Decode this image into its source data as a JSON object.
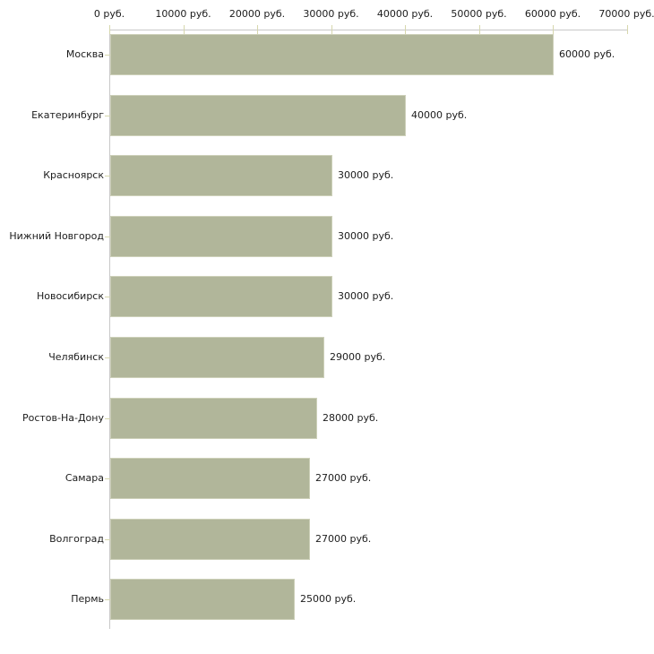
{
  "chart_data": {
    "type": "bar",
    "orientation": "horizontal",
    "title": "",
    "categories": [
      "Москва",
      "Екатеринбург",
      "Красноярск",
      "Нижний Новгород",
      "Новосибирск",
      "Челябинск",
      "Ростов-На-Дону",
      "Самара",
      "Волгоград",
      "Пермь"
    ],
    "values": [
      60000,
      40000,
      30000,
      30000,
      30000,
      29000,
      28000,
      27000,
      27000,
      25000
    ],
    "value_labels": [
      "60000 руб.",
      "40000 руб.",
      "30000 руб.",
      "30000 руб.",
      "30000 руб.",
      "29000 руб.",
      "28000 руб.",
      "27000 руб.",
      "27000 руб.",
      "25000 руб."
    ],
    "x_tick_values": [
      0,
      10000,
      20000,
      30000,
      40000,
      50000,
      60000,
      70000
    ],
    "x_tick_labels": [
      "0 руб.",
      "10000 руб.",
      "20000 руб.",
      "30000 руб.",
      "40000 руб.",
      "50000 руб.",
      "60000 руб.",
      "70000 руб."
    ],
    "xlim": [
      0,
      70000
    ],
    "xlabel": "",
    "ylabel": "",
    "axis_position": "top",
    "grid": false,
    "legend_position": "none",
    "colors": {
      "bar_fill": "#b1b69a",
      "bar_border": "#cdd0b9",
      "axis_line": "#c8c8c8",
      "tick_mark": "#d6d7ad",
      "text": "#1c1c1c",
      "background": "#ffffff"
    }
  }
}
